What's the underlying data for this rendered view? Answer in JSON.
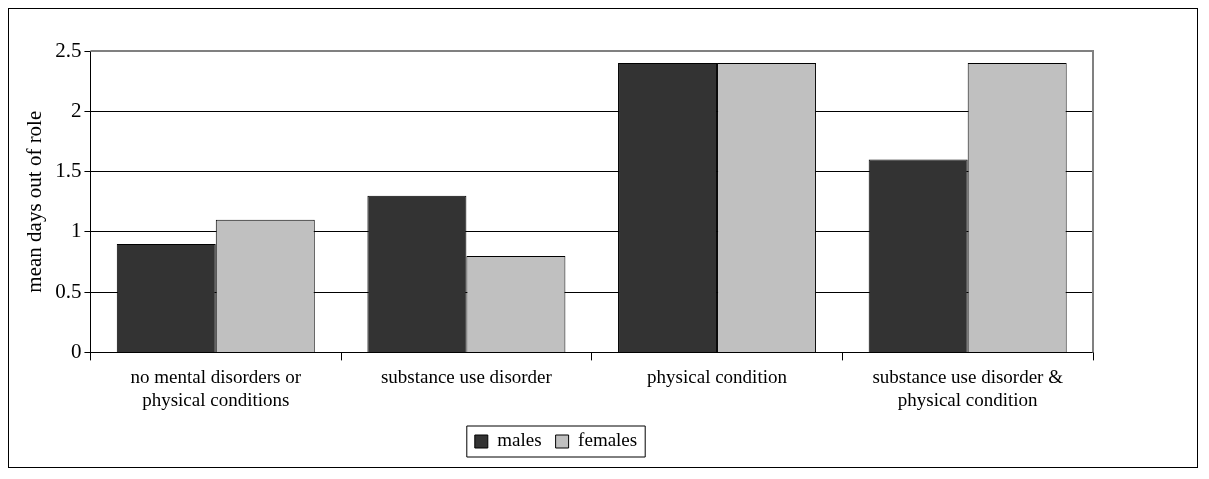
{
  "chart_data": {
    "type": "bar",
    "ylabel": "mean days out of role",
    "categories": [
      "no mental disorders or physical conditions",
      "substance use disorder",
      "physical condition",
      "substance use disorder & physical condition"
    ],
    "series": [
      {
        "name": "males",
        "color": "#333333",
        "values": [
          0.9,
          1.3,
          2.4,
          1.6
        ]
      },
      {
        "name": "females",
        "color": "#c0c0c0",
        "values": [
          1.1,
          0.8,
          2.4,
          2.4
        ]
      }
    ],
    "ylim": [
      0,
      2.5
    ],
    "yticks": [
      0,
      0.5,
      1,
      1.5,
      2,
      2.5
    ],
    "grid": "y",
    "legend": "bottom"
  }
}
